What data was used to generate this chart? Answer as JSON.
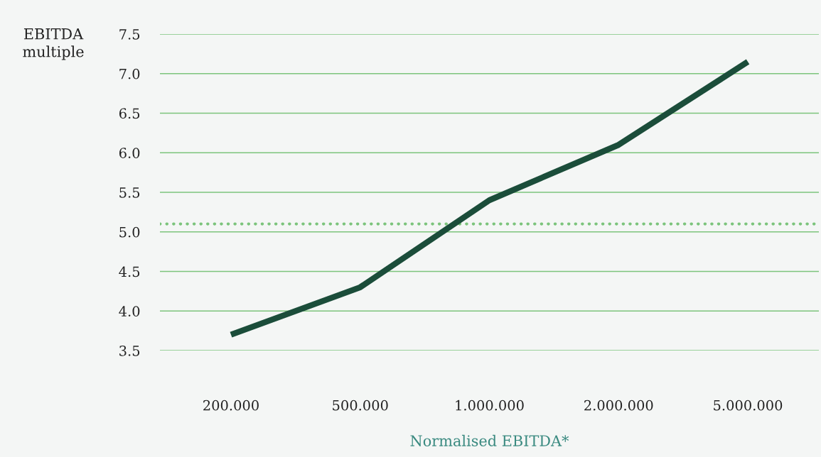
{
  "chart_data": {
    "type": "line",
    "categories": [
      "200.000",
      "500.000",
      "1.000.000",
      "2.000.000",
      "5.000.000"
    ],
    "series": [
      {
        "color": "#1b4d3a",
        "values": [
          3.7,
          4.3,
          5.4,
          6.1,
          7.15
        ]
      }
    ],
    "ylabel": "EBITDA\nmultiple",
    "xlabel": "Normalised EBITDA*",
    "ylim": [
      3.5,
      7.5
    ],
    "yticks": [
      {
        "value": 3.5,
        "label": "3.5"
      },
      {
        "value": 4,
        "label": "4.0"
      },
      {
        "value": 4.5,
        "label": "4.5"
      },
      {
        "value": 5,
        "label": "5.0"
      },
      {
        "value": 5.5,
        "label": "5.5"
      },
      {
        "value": 6,
        "label": "6.0"
      },
      {
        "value": 6.5,
        "label": "6.5"
      },
      {
        "value": 7,
        "label": "7.0"
      },
      {
        "value": 7.5,
        "label": "7.5"
      }
    ],
    "ref_lines": [
      {
        "axis": "y",
        "value": 5.1,
        "color": "#7cc47c",
        "line_style": "dotted"
      }
    ],
    "grid": "y",
    "line_style": "solid",
    "marker": "none"
  }
}
